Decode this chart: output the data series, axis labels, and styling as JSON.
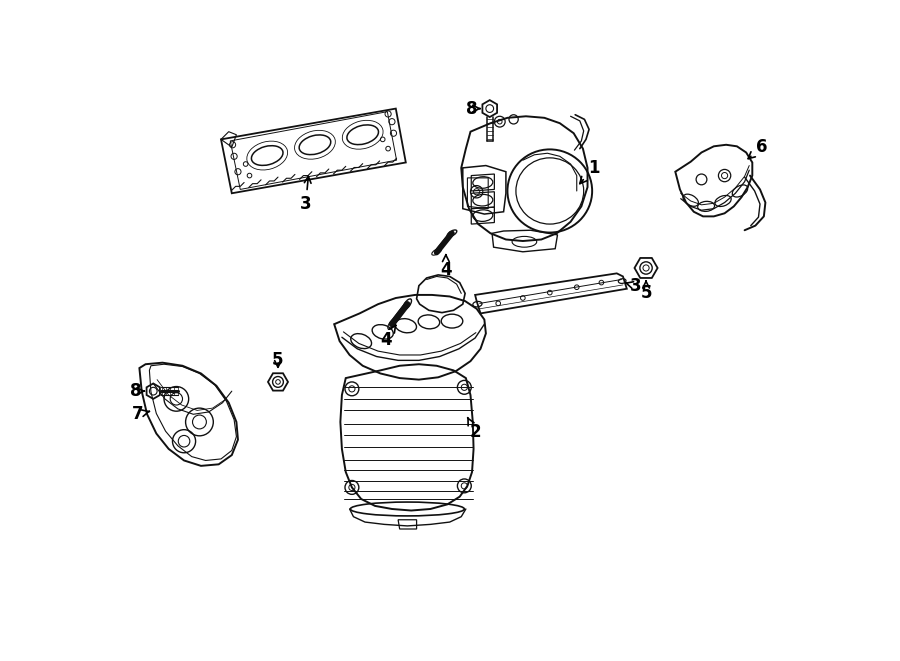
{
  "bg_color": "#ffffff",
  "line_color": "#111111",
  "fig_width": 9.0,
  "fig_height": 6.61,
  "dpi": 100
}
